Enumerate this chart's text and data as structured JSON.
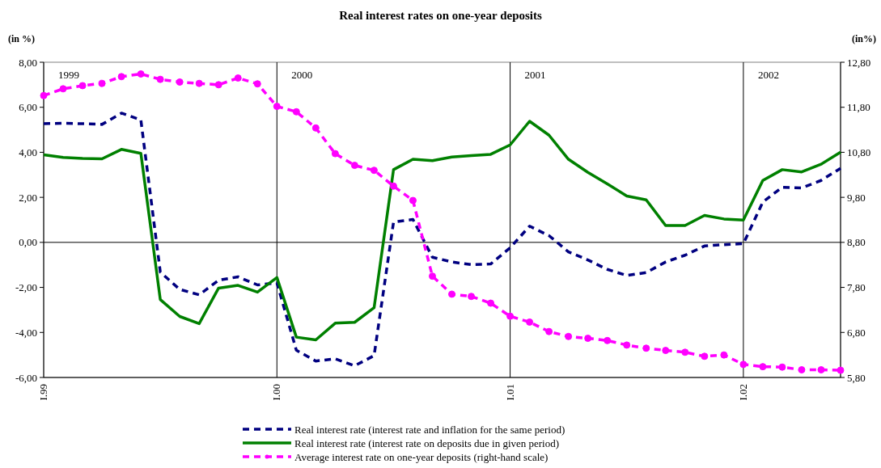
{
  "chart_data": {
    "type": "line",
    "title": "Real interest rates on one-year deposits",
    "ylabel": "(in %)",
    "y2label": "(in%)",
    "categories": [
      "I.99",
      null,
      null,
      null,
      null,
      null,
      null,
      null,
      null,
      null,
      null,
      null,
      "I.00",
      null,
      null,
      null,
      null,
      null,
      null,
      null,
      null,
      null,
      null,
      null,
      "I.01",
      null,
      null,
      null,
      null,
      null,
      null,
      null,
      null,
      null,
      null,
      null,
      "I.02",
      null,
      null,
      null,
      null,
      null
    ],
    "series": [
      {
        "name": "Real interest rate (interest rate and inflation for the same period)",
        "color": "#000080",
        "line_style": "dashed",
        "marker": "none",
        "values": [
          5.27,
          5.29,
          5.27,
          5.24,
          5.74,
          5.44,
          -1.32,
          -2.09,
          -2.33,
          -1.68,
          -1.53,
          -1.89,
          -1.8,
          -4.79,
          -5.27,
          -5.17,
          -5.48,
          -5.03,
          0.9,
          1.02,
          -0.66,
          -0.87,
          -0.99,
          -0.96,
          -0.24,
          0.72,
          0.3,
          -0.42,
          -0.78,
          -1.2,
          -1.47,
          -1.34,
          -0.87,
          -0.57,
          -0.16,
          -0.1,
          -0.06,
          1.79,
          2.45,
          2.42,
          2.75,
          3.29
        ]
      },
      {
        "name": "Real interest rate (interest rate on deposits due in given period)",
        "color": "#008000",
        "line_style": "solid",
        "marker": "none",
        "values": [
          3.89,
          3.77,
          3.73,
          3.71,
          4.13,
          3.95,
          -2.54,
          -3.29,
          -3.61,
          -2.03,
          -1.91,
          -2.21,
          -1.56,
          -4.21,
          -4.33,
          -3.59,
          -3.55,
          -2.9,
          3.23,
          3.69,
          3.63,
          3.79,
          3.85,
          3.91,
          4.33,
          5.38,
          4.76,
          3.69,
          3.11,
          2.6,
          2.06,
          1.89,
          0.75,
          0.75,
          1.2,
          1.04,
          0.99,
          2.75,
          3.23,
          3.13,
          3.47,
          4.01
        ]
      },
      {
        "name": "Average interest rate on one-year deposits (right-hand scale)",
        "color": "#ff00ff",
        "axis": "y2",
        "line_style": "dashed",
        "marker": "circle",
        "values": [
          12.06,
          12.21,
          12.28,
          12.33,
          12.48,
          12.54,
          12.42,
          12.36,
          12.33,
          12.3,
          12.45,
          12.32,
          11.82,
          11.7,
          11.34,
          10.77,
          10.51,
          10.4,
          10.05,
          9.73,
          8.05,
          7.65,
          7.6,
          7.45,
          7.16,
          7.03,
          6.82,
          6.71,
          6.67,
          6.62,
          6.52,
          6.45,
          6.4,
          6.36,
          6.27,
          6.3,
          6.09,
          6.04,
          6.03,
          5.97,
          5.97,
          5.96
        ]
      }
    ],
    "ylim": [
      -6,
      8
    ],
    "yticks": [
      {
        "value": -6,
        "label": "-6,00"
      },
      {
        "value": -4,
        "label": "-4,00"
      },
      {
        "value": -2,
        "label": "-2,00"
      },
      {
        "value": 0,
        "label": "0,00"
      },
      {
        "value": 2,
        "label": "2,00"
      },
      {
        "value": 4,
        "label": "4,00"
      },
      {
        "value": 6,
        "label": "6,00"
      },
      {
        "value": 8,
        "label": "8,00"
      }
    ],
    "y2lim": [
      5.8,
      12.8
    ],
    "y2ticks": [
      {
        "value": 5.8,
        "label": "5,80"
      },
      {
        "value": 6.8,
        "label": "6,80"
      },
      {
        "value": 7.8,
        "label": "7,80"
      },
      {
        "value": 8.8,
        "label": "8,80"
      },
      {
        "value": 9.8,
        "label": "9,80"
      },
      {
        "value": 10.8,
        "label": "10,80"
      },
      {
        "value": 11.8,
        "label": "11,80"
      },
      {
        "value": 12.8,
        "label": "12,80"
      }
    ],
    "ref_lines": [
      {
        "axis": "y",
        "value": 0,
        "color": "#000000"
      },
      {
        "axis": "x",
        "value": "I.00",
        "label": "2000",
        "color": "#000000"
      },
      {
        "axis": "x",
        "value": "I.01",
        "label": "2001",
        "color": "#000000"
      },
      {
        "axis": "x",
        "value": "I.02",
        "label": "2002",
        "color": "#000000"
      }
    ],
    "annotations": [
      "1999"
    ],
    "grid": false,
    "legend": "bottom"
  }
}
